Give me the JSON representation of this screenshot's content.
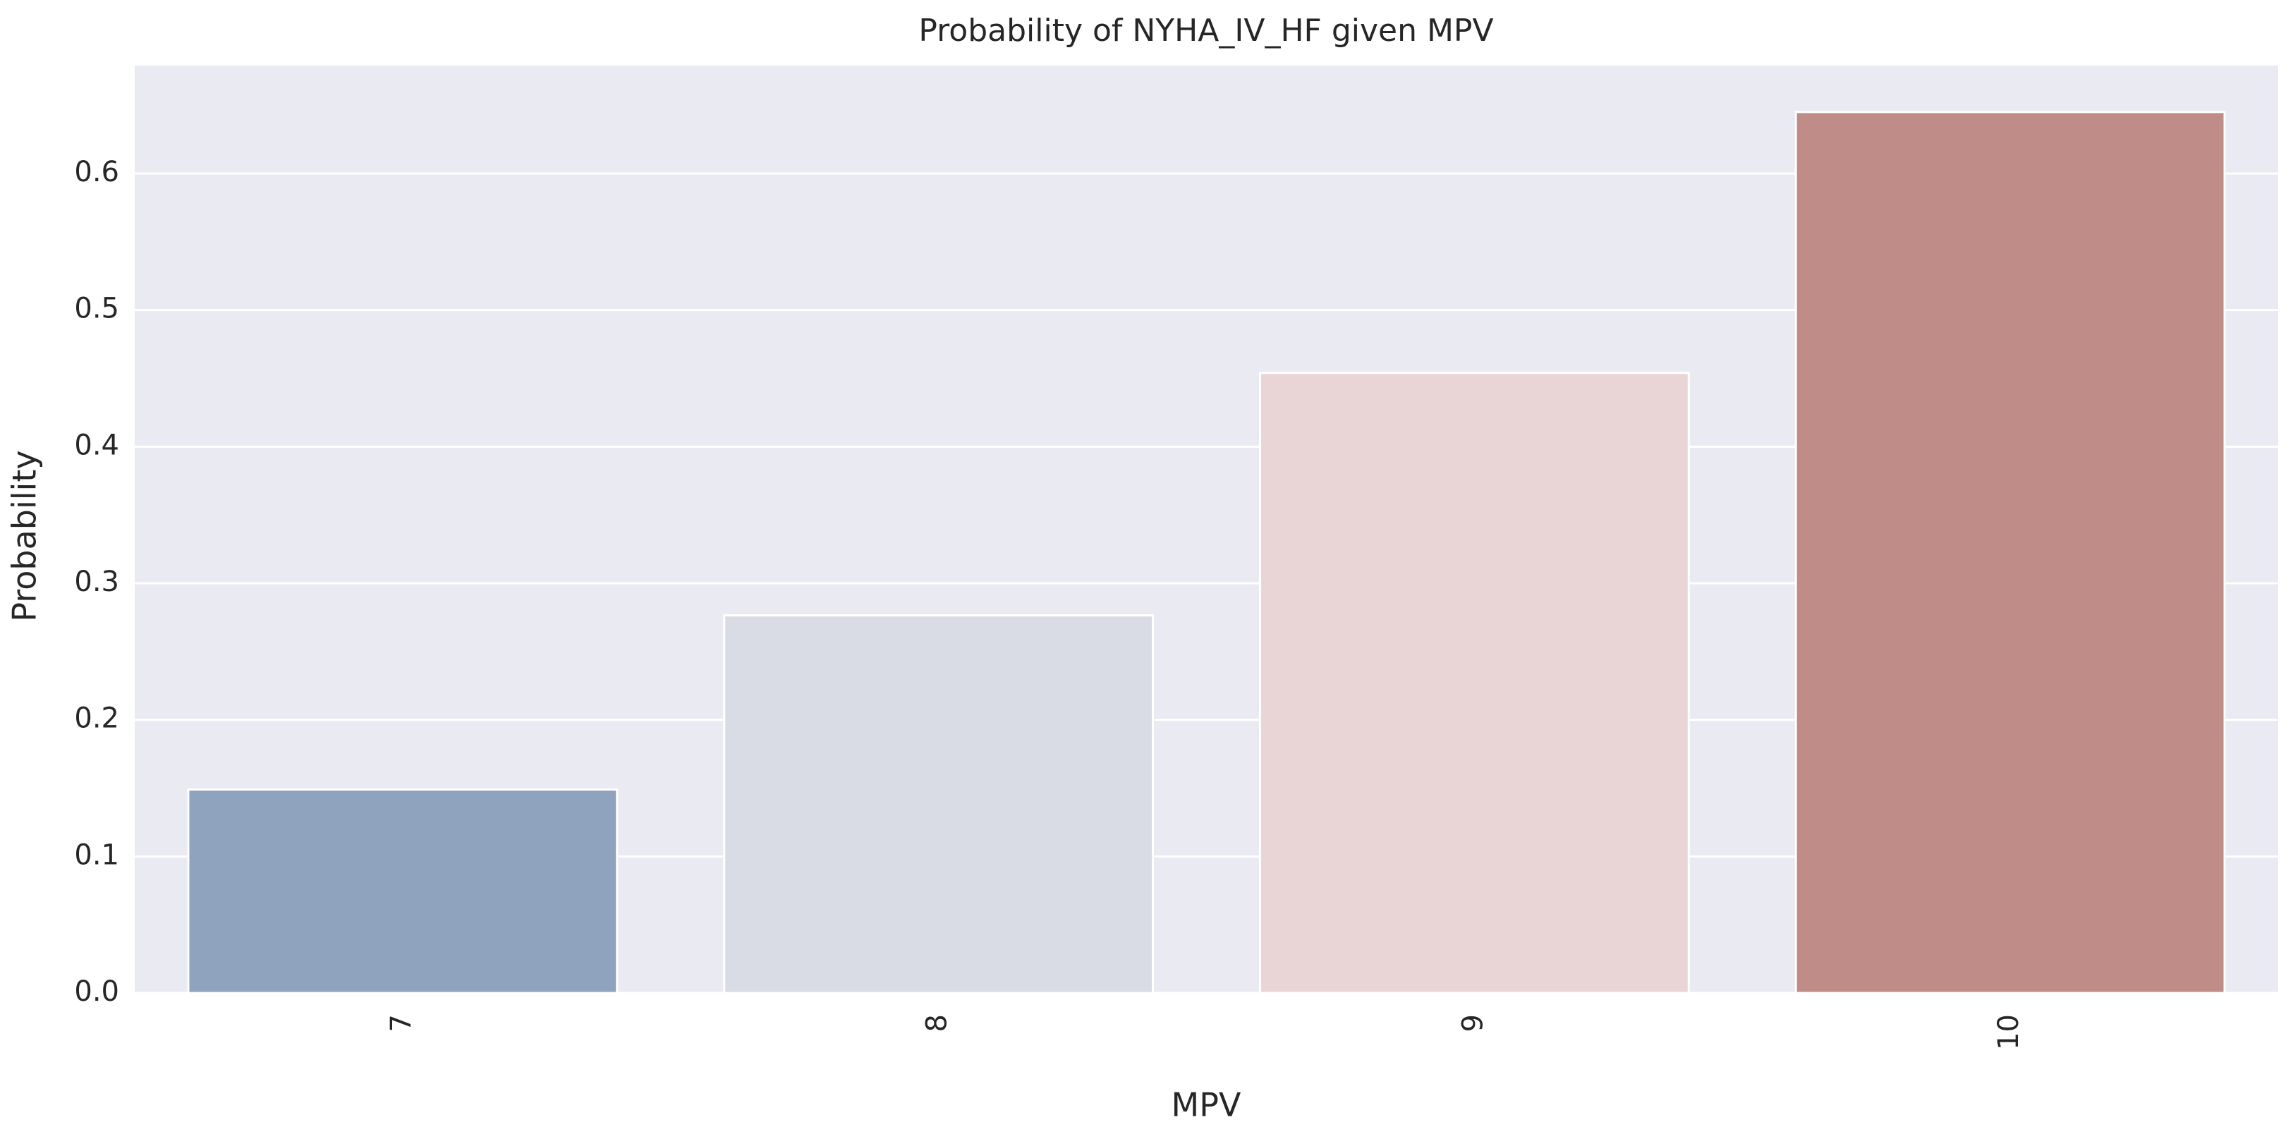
{
  "chart_data": {
    "type": "bar",
    "title": "Probability of NYHA_IV_HF given MPV",
    "x_label": "MPV",
    "y_label": "Probability",
    "categories": [
      "7",
      "8",
      "9",
      "10"
    ],
    "values": [
      0.149,
      0.2765,
      0.454,
      0.645
    ],
    "colors": [
      "#8fa3bf",
      "#d9dce5",
      "#e9d5d5",
      "#c08c87"
    ],
    "ylim": [
      0,
      0.679
    ],
    "yticks": [
      {
        "value": 0,
        "label": "0.0"
      },
      0.1,
      0.2,
      0.3,
      0.4,
      0.5,
      0.6
    ],
    "grid": true,
    "background": "#eaeaf2"
  }
}
